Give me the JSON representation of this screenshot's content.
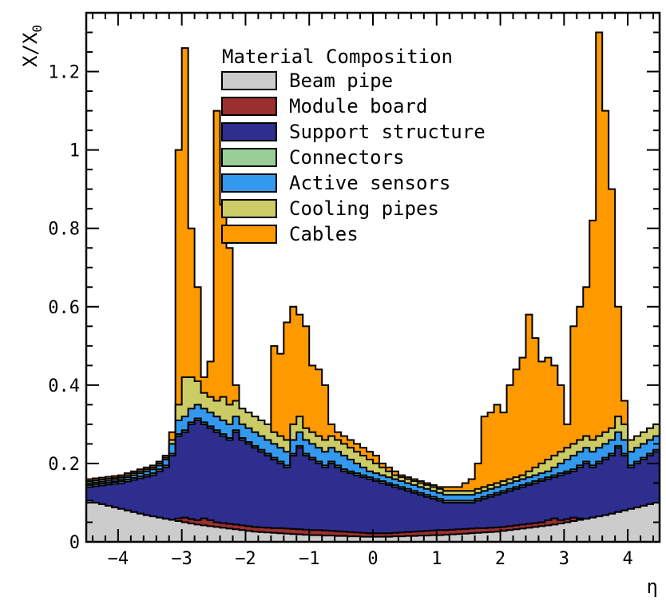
{
  "chart_data": {
    "type": "area",
    "stacked": true,
    "histogram": true,
    "xlabel": "η",
    "ylabel": "X/X0",
    "ylabel_main": "X/X",
    "ylabel_sub": "0",
    "xlim": [
      -4.5,
      4.5
    ],
    "ylim": [
      0,
      1.35
    ],
    "x_ticks": [
      -4,
      -3,
      -2,
      -1,
      0,
      1,
      2,
      3,
      4
    ],
    "x_tick_labels": [
      "−4",
      "−3",
      "−2",
      "−1",
      "0",
      "1",
      "2",
      "3",
      "4"
    ],
    "y_ticks": [
      0,
      0.2,
      0.4,
      0.6,
      0.8,
      1,
      1.2
    ],
    "y_tick_labels": [
      "0",
      "0.2",
      "0.4",
      "0.6",
      "0.8",
      "1",
      "1.2"
    ],
    "grid": false,
    "legend_title": "Material Composition",
    "legend_position": "top-center",
    "bin_width": 0.1,
    "x_bins_start": -4.5,
    "series": [
      {
        "name": "Beam pipe",
        "color": "#cccccc",
        "cumulative_top": [
          0.105,
          0.1,
          0.096,
          0.092,
          0.088,
          0.084,
          0.08,
          0.076,
          0.072,
          0.068,
          0.065,
          0.062,
          0.059,
          0.056,
          0.053,
          0.05,
          0.047,
          0.044,
          0.042,
          0.04,
          0.038,
          0.036,
          0.034,
          0.032,
          0.03,
          0.028,
          0.026,
          0.025,
          0.024,
          0.023,
          0.022,
          0.021,
          0.02,
          0.019,
          0.018,
          0.017,
          0.017,
          0.016,
          0.016,
          0.015,
          0.015,
          0.014,
          0.014,
          0.013,
          0.013,
          0.013,
          0.013,
          0.013,
          0.014,
          0.014,
          0.015,
          0.015,
          0.016,
          0.016,
          0.017,
          0.017,
          0.018,
          0.019,
          0.02,
          0.021,
          0.022,
          0.023,
          0.024,
          0.025,
          0.026,
          0.028,
          0.03,
          0.032,
          0.034,
          0.036,
          0.038,
          0.04,
          0.042,
          0.044,
          0.047,
          0.05,
          0.053,
          0.056,
          0.059,
          0.062,
          0.065,
          0.068,
          0.072,
          0.076,
          0.08,
          0.084,
          0.088,
          0.092,
          0.096,
          0.1
        ]
      },
      {
        "name": "Module board",
        "color": "#9b2f2f",
        "cumulative_top": [
          0.105,
          0.1,
          0.096,
          0.092,
          0.088,
          0.084,
          0.08,
          0.076,
          0.072,
          0.068,
          0.065,
          0.062,
          0.059,
          0.056,
          0.06,
          0.062,
          0.058,
          0.055,
          0.06,
          0.055,
          0.05,
          0.048,
          0.046,
          0.044,
          0.042,
          0.04,
          0.038,
          0.037,
          0.036,
          0.035,
          0.035,
          0.034,
          0.033,
          0.032,
          0.031,
          0.03,
          0.03,
          0.029,
          0.028,
          0.027,
          0.026,
          0.025,
          0.024,
          0.023,
          0.022,
          0.022,
          0.022,
          0.022,
          0.023,
          0.024,
          0.025,
          0.026,
          0.027,
          0.028,
          0.029,
          0.03,
          0.03,
          0.031,
          0.032,
          0.033,
          0.034,
          0.035,
          0.035,
          0.036,
          0.037,
          0.038,
          0.04,
          0.042,
          0.044,
          0.046,
          0.048,
          0.05,
          0.055,
          0.06,
          0.055,
          0.058,
          0.062,
          0.06,
          0.059,
          0.062,
          0.065,
          0.068,
          0.072,
          0.076,
          0.08,
          0.084,
          0.088,
          0.092,
          0.096,
          0.1
        ]
      },
      {
        "name": "Support structure",
        "color": "#2e2e8f",
        "cumulative_top": [
          0.14,
          0.142,
          0.144,
          0.146,
          0.148,
          0.15,
          0.154,
          0.158,
          0.162,
          0.166,
          0.17,
          0.18,
          0.19,
          0.22,
          0.27,
          0.28,
          0.3,
          0.31,
          0.3,
          0.29,
          0.28,
          0.27,
          0.26,
          0.28,
          0.26,
          0.25,
          0.24,
          0.23,
          0.22,
          0.21,
          0.2,
          0.19,
          0.22,
          0.24,
          0.22,
          0.21,
          0.2,
          0.19,
          0.2,
          0.19,
          0.18,
          0.175,
          0.17,
          0.165,
          0.16,
          0.155,
          0.15,
          0.145,
          0.14,
          0.135,
          0.13,
          0.125,
          0.12,
          0.115,
          0.11,
          0.105,
          0.1,
          0.1,
          0.1,
          0.1,
          0.1,
          0.105,
          0.11,
          0.115,
          0.12,
          0.125,
          0.13,
          0.135,
          0.14,
          0.145,
          0.15,
          0.155,
          0.16,
          0.165,
          0.17,
          0.175,
          0.18,
          0.19,
          0.2,
          0.19,
          0.2,
          0.21,
          0.22,
          0.24,
          0.22,
          0.19,
          0.2,
          0.21,
          0.22,
          0.23
        ]
      },
      {
        "name": "Connectors",
        "color": "#98cf98",
        "cumulative_top": [
          0.145,
          0.147,
          0.149,
          0.151,
          0.153,
          0.155,
          0.159,
          0.163,
          0.167,
          0.171,
          0.175,
          0.185,
          0.195,
          0.225,
          0.275,
          0.285,
          0.305,
          0.315,
          0.305,
          0.295,
          0.285,
          0.275,
          0.265,
          0.285,
          0.265,
          0.255,
          0.245,
          0.235,
          0.225,
          0.215,
          0.205,
          0.195,
          0.225,
          0.245,
          0.225,
          0.215,
          0.205,
          0.195,
          0.205,
          0.195,
          0.185,
          0.18,
          0.175,
          0.17,
          0.165,
          0.16,
          0.155,
          0.15,
          0.145,
          0.14,
          0.135,
          0.13,
          0.125,
          0.12,
          0.115,
          0.11,
          0.105,
          0.105,
          0.105,
          0.105,
          0.105,
          0.11,
          0.115,
          0.12,
          0.125,
          0.13,
          0.135,
          0.14,
          0.145,
          0.15,
          0.155,
          0.16,
          0.165,
          0.17,
          0.175,
          0.18,
          0.185,
          0.195,
          0.205,
          0.195,
          0.205,
          0.215,
          0.225,
          0.245,
          0.225,
          0.195,
          0.205,
          0.215,
          0.225,
          0.235
        ]
      },
      {
        "name": "Active sensors",
        "color": "#3399ee",
        "cumulative_top": [
          0.15,
          0.152,
          0.154,
          0.156,
          0.158,
          0.16,
          0.165,
          0.17,
          0.175,
          0.18,
          0.185,
          0.195,
          0.21,
          0.25,
          0.31,
          0.32,
          0.34,
          0.35,
          0.34,
          0.33,
          0.32,
          0.31,
          0.3,
          0.32,
          0.3,
          0.29,
          0.28,
          0.27,
          0.26,
          0.25,
          0.24,
          0.23,
          0.26,
          0.28,
          0.26,
          0.25,
          0.24,
          0.23,
          0.24,
          0.23,
          0.22,
          0.21,
          0.2,
          0.19,
          0.18,
          0.175,
          0.17,
          0.165,
          0.16,
          0.155,
          0.15,
          0.145,
          0.14,
          0.135,
          0.13,
          0.125,
          0.12,
          0.12,
          0.12,
          0.12,
          0.12,
          0.125,
          0.13,
          0.135,
          0.14,
          0.145,
          0.15,
          0.155,
          0.16,
          0.165,
          0.17,
          0.175,
          0.18,
          0.19,
          0.2,
          0.21,
          0.22,
          0.23,
          0.24,
          0.23,
          0.24,
          0.25,
          0.26,
          0.28,
          0.26,
          0.23,
          0.24,
          0.25,
          0.26,
          0.27
        ]
      },
      {
        "name": "Cooling pipes",
        "color": "#cccc66",
        "cumulative_top": [
          0.155,
          0.157,
          0.159,
          0.161,
          0.163,
          0.165,
          0.17,
          0.175,
          0.18,
          0.185,
          0.19,
          0.2,
          0.215,
          0.26,
          0.35,
          0.42,
          0.42,
          0.41,
          0.38,
          0.37,
          0.36,
          0.37,
          0.35,
          0.36,
          0.34,
          0.33,
          0.32,
          0.31,
          0.3,
          0.28,
          0.27,
          0.26,
          0.3,
          0.32,
          0.29,
          0.28,
          0.27,
          0.26,
          0.27,
          0.26,
          0.25,
          0.24,
          0.23,
          0.22,
          0.21,
          0.2,
          0.19,
          0.18,
          0.17,
          0.165,
          0.16,
          0.155,
          0.15,
          0.145,
          0.14,
          0.135,
          0.13,
          0.13,
          0.13,
          0.13,
          0.13,
          0.135,
          0.14,
          0.145,
          0.15,
          0.155,
          0.16,
          0.165,
          0.17,
          0.18,
          0.19,
          0.2,
          0.21,
          0.22,
          0.23,
          0.24,
          0.25,
          0.26,
          0.27,
          0.26,
          0.27,
          0.28,
          0.29,
          0.32,
          0.3,
          0.26,
          0.27,
          0.28,
          0.29,
          0.3
        ]
      },
      {
        "name": "Cables",
        "color": "#ff9900",
        "cumulative_top": [
          0.16,
          0.162,
          0.164,
          0.166,
          0.168,
          0.17,
          0.175,
          0.18,
          0.185,
          0.19,
          0.195,
          0.205,
          0.22,
          0.28,
          1.0,
          1.26,
          0.8,
          0.65,
          0.42,
          0.46,
          1.1,
          0.86,
          0.75,
          0.4,
          0.32,
          0.3,
          0.29,
          0.28,
          0.27,
          0.5,
          0.48,
          0.56,
          0.6,
          0.58,
          0.55,
          0.45,
          0.44,
          0.4,
          0.3,
          0.28,
          0.27,
          0.26,
          0.25,
          0.24,
          0.23,
          0.22,
          0.2,
          0.19,
          0.18,
          0.17,
          0.165,
          0.16,
          0.155,
          0.15,
          0.145,
          0.14,
          0.14,
          0.14,
          0.14,
          0.15,
          0.16,
          0.2,
          0.32,
          0.33,
          0.35,
          0.33,
          0.4,
          0.44,
          0.47,
          0.58,
          0.52,
          0.46,
          0.47,
          0.45,
          0.4,
          0.3,
          0.55,
          0.6,
          0.65,
          0.82,
          1.3,
          1.1,
          0.9,
          0.6,
          0.36,
          0.26,
          0.22,
          0.2,
          0.18,
          0.17
        ]
      }
    ]
  }
}
